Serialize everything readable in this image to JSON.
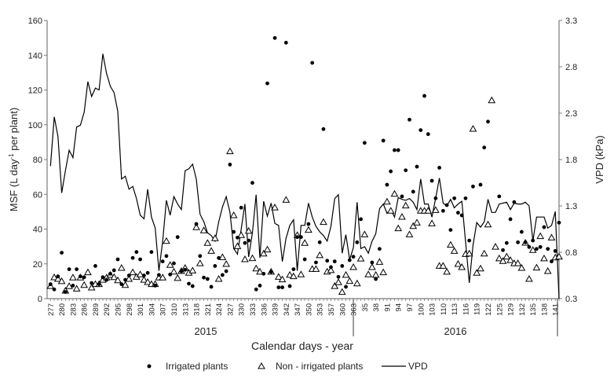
{
  "chart_data": {
    "type": "scatter+line",
    "xlabel": "Calendar days - year",
    "ylabel_left": "MSF (L day-1 per plant)",
    "ylabel_left_parts": {
      "pre": "MSF (L day",
      "sup": "-1",
      "post": " per plant)"
    },
    "ylabel_right": "VPD (kPa)",
    "ylim_left": [
      0,
      160
    ],
    "yticks_left": [
      0,
      20,
      40,
      60,
      80,
      100,
      120,
      140,
      160
    ],
    "ylim_right": [
      0.3,
      3.3
    ],
    "yticks_right": [
      "0.3",
      "0.8",
      "1.3",
      "1.8",
      "2.3",
      "2.8",
      "3.3"
    ],
    "x_tick_labels": [
      "277",
      "280",
      "283",
      "286",
      "289",
      "292",
      "295",
      "298",
      "301",
      "304",
      "307",
      "310",
      "313",
      "318",
      "321",
      "324",
      "327",
      "330",
      "333",
      "336",
      "339",
      "342",
      "347",
      "350",
      "353",
      "357",
      "360",
      "363",
      "35",
      "38",
      "91",
      "94",
      "97",
      "100",
      "103",
      "110",
      "113",
      "116",
      "119",
      "122",
      "125",
      "129",
      "132",
      "135",
      "138",
      "141"
    ],
    "year_labels": [
      "2015",
      "2016"
    ],
    "grid": false,
    "legend_placement": "bottom",
    "legend": [
      "Irrigated plants",
      "Non - irrigated plants",
      "VPD"
    ],
    "colors": {
      "series": "#000000",
      "axis": "#7a7a7a"
    },
    "series": [
      {
        "name": "Irrigated plants",
        "marker": "filled-circle",
        "axis": "left",
        "points": [
          [
            0,
            8.3
          ],
          [
            1,
            5.3
          ],
          [
            2,
            12.8
          ],
          [
            3,
            26.4
          ],
          [
            4,
            3.8
          ],
          [
            5,
            16.9
          ],
          [
            6,
            7.5
          ],
          [
            7,
            16.9
          ],
          [
            8,
            12.8
          ],
          [
            9,
            12.3
          ],
          [
            11,
            9
          ],
          [
            12,
            18.8
          ],
          [
            13,
            8.3
          ],
          [
            14,
            12.3
          ],
          [
            15,
            10.8
          ],
          [
            16,
            14.3
          ],
          [
            17,
            16.3
          ],
          [
            18,
            22.6
          ],
          [
            19,
            8.3
          ],
          [
            20,
            10.8
          ],
          [
            21,
            13.3
          ],
          [
            22,
            23.4
          ],
          [
            23,
            26.8
          ],
          [
            24,
            22.6
          ],
          [
            25,
            13.3
          ],
          [
            26,
            14.8
          ],
          [
            27,
            26.8
          ],
          [
            28,
            7.5
          ],
          [
            29,
            13.6
          ],
          [
            30,
            21.4
          ],
          [
            31,
            24.5
          ],
          [
            32,
            13.9
          ],
          [
            33,
            20.3
          ],
          [
            34,
            35.4
          ],
          [
            35,
            15.8
          ],
          [
            36,
            16.6
          ],
          [
            37,
            8.6
          ],
          [
            38,
            7.2
          ],
          [
            39,
            42.9
          ],
          [
            40,
            24.5
          ],
          [
            41,
            12.1
          ],
          [
            42,
            11.3
          ],
          [
            43,
            6.8
          ],
          [
            44,
            18.8
          ],
          [
            45,
            23.4
          ],
          [
            46,
            13.6
          ],
          [
            47,
            15.8
          ],
          [
            48,
            77.1
          ],
          [
            49,
            38.4
          ],
          [
            50,
            35.1
          ],
          [
            51,
            52.3
          ],
          [
            52,
            32
          ],
          [
            53,
            33.4
          ],
          [
            54,
            66.6
          ],
          [
            55,
            5.3
          ],
          [
            56,
            7.5
          ],
          [
            57,
            14.3
          ],
          [
            58,
            123.8
          ],
          [
            59,
            15.4
          ],
          [
            60,
            149.9
          ],
          [
            61,
            6.5
          ],
          [
            62,
            6.5
          ],
          [
            63,
            147.2
          ],
          [
            64,
            7.2
          ],
          [
            65,
            16.9
          ],
          [
            66,
            35.4
          ],
          [
            67,
            35.4
          ],
          [
            68,
            22.6
          ],
          [
            69,
            42.9
          ],
          [
            70,
            135.6
          ],
          [
            71,
            20.8
          ],
          [
            72,
            32.4
          ],
          [
            73,
            97.5
          ],
          [
            74,
            21.8
          ],
          [
            75,
            18.1
          ],
          [
            76,
            21.4
          ],
          [
            77,
            12.5
          ],
          [
            78,
            18.8
          ],
          [
            79,
            6.8
          ],
          [
            80,
            22.1
          ],
          [
            81,
            24.1
          ],
          [
            82,
            32.4
          ],
          [
            83,
            45.7
          ],
          [
            84,
            89.6
          ],
          [
            86,
            20.8
          ],
          [
            87,
            11.3
          ],
          [
            88,
            28.6
          ],
          [
            89,
            90.9
          ],
          [
            90,
            65.5
          ],
          [
            91,
            73.2
          ],
          [
            92,
            85.4
          ],
          [
            93,
            85.4
          ],
          [
            94,
            58.8
          ],
          [
            95,
            73.8
          ],
          [
            96,
            102.9
          ],
          [
            97,
            61.5
          ],
          [
            98,
            75.9
          ],
          [
            99,
            96.9
          ],
          [
            100,
            116.6
          ],
          [
            101,
            94.6
          ],
          [
            102,
            67.8
          ],
          [
            103,
            57.7
          ],
          [
            104,
            75.3
          ],
          [
            105,
            50.5
          ],
          [
            106,
            53.8
          ],
          [
            107,
            39.5
          ],
          [
            108,
            57.7
          ],
          [
            109,
            49.4
          ],
          [
            110,
            47.9
          ],
          [
            111,
            57.7
          ],
          [
            112,
            33.4
          ],
          [
            113,
            64.5
          ],
          [
            115,
            65.5
          ],
          [
            116,
            86.9
          ],
          [
            117,
            101.8
          ],
          [
            120,
            58.8
          ],
          [
            121,
            27.9
          ],
          [
            122,
            32
          ],
          [
            123,
            45.7
          ],
          [
            124,
            55.5
          ],
          [
            125,
            32.4
          ],
          [
            126,
            38.4
          ],
          [
            127,
            32.4
          ],
          [
            128,
            29.7
          ],
          [
            129,
            33.4
          ],
          [
            130,
            28.6
          ],
          [
            131,
            29.7
          ],
          [
            132,
            41.1
          ],
          [
            133,
            28.6
          ],
          [
            134,
            21.4
          ],
          [
            135,
            27.4
          ],
          [
            136,
            43.7
          ]
        ]
      },
      {
        "name": "Non - irrigated plants",
        "marker": "open-triangle",
        "axis": "left",
        "points": [
          [
            0,
            7.2
          ],
          [
            1,
            12.2
          ],
          [
            2,
            11.3
          ],
          [
            3,
            10
          ],
          [
            4,
            4.5
          ],
          [
            5,
            7.1
          ],
          [
            6,
            12.1
          ],
          [
            7,
            5.7
          ],
          [
            8,
            12.1
          ],
          [
            9,
            7.8
          ],
          [
            10,
            15.1
          ],
          [
            11,
            6.3
          ],
          [
            12,
            8.3
          ],
          [
            13,
            8.3
          ],
          [
            14,
            10.8
          ],
          [
            15,
            12.1
          ],
          [
            16,
            13.6
          ],
          [
            17,
            12.3
          ],
          [
            18,
            10.5
          ],
          [
            19,
            17.6
          ],
          [
            20,
            7.8
          ],
          [
            21,
            11.3
          ],
          [
            22,
            15.1
          ],
          [
            23,
            12.5
          ],
          [
            24,
            13.9
          ],
          [
            25,
            10.8
          ],
          [
            26,
            9.5
          ],
          [
            27,
            8.3
          ],
          [
            28,
            8.3
          ],
          [
            29,
            12.1
          ],
          [
            30,
            12.1
          ],
          [
            31,
            33.1
          ],
          [
            32,
            19.3
          ],
          [
            33,
            15.5
          ],
          [
            34,
            11.8
          ],
          [
            35,
            15.8
          ],
          [
            36,
            17.6
          ],
          [
            37,
            14.8
          ],
          [
            38,
            16.1
          ],
          [
            39,
            41
          ],
          [
            40,
            20.3
          ],
          [
            41,
            39.2
          ],
          [
            42,
            32
          ],
          [
            43,
            27.4
          ],
          [
            44,
            34.7
          ],
          [
            45,
            11.3
          ],
          [
            46,
            23.8
          ],
          [
            47,
            19.9
          ],
          [
            48,
            84.7
          ],
          [
            49,
            47.9
          ],
          [
            50,
            30.1
          ],
          [
            51,
            36.5
          ],
          [
            52,
            22.6
          ],
          [
            53,
            38.9
          ],
          [
            54,
            23.2
          ],
          [
            55,
            17.3
          ],
          [
            56,
            15.4
          ],
          [
            57,
            25.9
          ],
          [
            58,
            28.2
          ],
          [
            59,
            15.4
          ],
          [
            60,
            52.4
          ],
          [
            61,
            12.5
          ],
          [
            62,
            11
          ],
          [
            63,
            56.8
          ],
          [
            64,
            13.6
          ],
          [
            65,
            12.8
          ],
          [
            66,
            36.5
          ],
          [
            67,
            13.9
          ],
          [
            68,
            32
          ],
          [
            69,
            39.5
          ],
          [
            70,
            17
          ],
          [
            71,
            17
          ],
          [
            72,
            24.9
          ],
          [
            73,
            44
          ],
          [
            74,
            15.5
          ],
          [
            75,
            16.3
          ],
          [
            76,
            7.2
          ],
          [
            77,
            9.4
          ],
          [
            78,
            3.8
          ],
          [
            79,
            13.6
          ],
          [
            80,
            10.1
          ],
          [
            81,
            18.1
          ],
          [
            82,
            8.7
          ],
          [
            83,
            23
          ],
          [
            84,
            36.9
          ],
          [
            85,
            13.9
          ],
          [
            86,
            18.1
          ],
          [
            87,
            13.6
          ],
          [
            88,
            21.1
          ],
          [
            89,
            15.1
          ],
          [
            90,
            55.7
          ],
          [
            91,
            50.5
          ],
          [
            92,
            60.2
          ],
          [
            93,
            40.4
          ],
          [
            94,
            47
          ],
          [
            95,
            53.5
          ],
          [
            96,
            36.9
          ],
          [
            97,
            41.7
          ],
          [
            98,
            43.7
          ],
          [
            99,
            50.5
          ],
          [
            100,
            50.5
          ],
          [
            101,
            50.5
          ],
          [
            102,
            43.2
          ],
          [
            103,
            50.9
          ],
          [
            104,
            18.8
          ],
          [
            105,
            18.8
          ],
          [
            106,
            15.4
          ],
          [
            107,
            30.9
          ],
          [
            108,
            27.4
          ],
          [
            109,
            19.9
          ],
          [
            110,
            18.1
          ],
          [
            111,
            25.6
          ],
          [
            112,
            25.9
          ],
          [
            113,
            97.6
          ],
          [
            114,
            14.8
          ],
          [
            115,
            17.3
          ],
          [
            116,
            25.9
          ],
          [
            117,
            42.6
          ],
          [
            118,
            114
          ],
          [
            119,
            29.8
          ],
          [
            120,
            23.1
          ],
          [
            121,
            21.6
          ],
          [
            122,
            24.1
          ],
          [
            123,
            22.1
          ],
          [
            124,
            20.3
          ],
          [
            125,
            20.3
          ],
          [
            126,
            17.6
          ],
          [
            127,
            32.1
          ],
          [
            128,
            11.3
          ],
          [
            129,
            27.9
          ],
          [
            130,
            17.8
          ],
          [
            131,
            35.9
          ],
          [
            132,
            23.1
          ],
          [
            133,
            15.8
          ],
          [
            134,
            35.1
          ],
          [
            135,
            23.6
          ],
          [
            136,
            24.1
          ]
        ]
      },
      {
        "name": "VPD",
        "marker": "line",
        "axis": "right",
        "values": [
          1.73,
          2.26,
          2.05,
          1.44,
          1.68,
          1.9,
          1.82,
          2.15,
          2.17,
          2.31,
          2.64,
          2.48,
          2.57,
          2.55,
          2.94,
          2.73,
          2.59,
          2.52,
          2.32,
          1.59,
          1.62,
          1.48,
          1.51,
          1.38,
          1.2,
          1.16,
          1.48,
          1.18,
          1.06,
          0.6,
          0.92,
          1.36,
          1.2,
          1.4,
          1.32,
          1.26,
          1.68,
          1.7,
          1.75,
          1.59,
          1.21,
          1.13,
          1.01,
          0.98,
          0.92,
          1.13,
          1.29,
          1.4,
          1.23,
          0.84,
          0.78,
          1.05,
          1.32,
          0.75,
          1.01,
          1.42,
          0.74,
          1.35,
          1.19,
          1.33,
          1.11,
          1.09,
          0.7,
          0.95,
          1.09,
          1.15,
          0.6,
          1.09,
          1.09,
          1.33,
          1.18,
          1.08,
          1.02,
          0.98,
          0.92,
          1.08,
          1.38,
          1.42,
          0.79,
          0.99,
          0.72,
          0.85,
          1.34,
          0.84,
          0.86,
          0.79,
          0.92,
          1.0,
          1.27,
          1.32,
          1.22,
          1.26,
          1.18,
          1.39,
          1.37,
          1.36,
          1.38,
          1.34,
          1.26,
          1.59,
          1.32,
          1.32,
          1.18,
          1.38,
          1.6,
          1.33,
          1.3,
          1.37,
          1.28,
          1.32,
          1.35,
          0.92,
          0.47,
          0.88,
          1.12,
          1.07,
          1.13,
          1.37,
          1.23,
          1.23,
          1.32,
          1.33,
          1.34,
          1.26,
          1.33,
          1.32,
          1.32,
          1.34,
          1.3,
          0.92,
          1.18,
          1.18,
          1.18,
          1.06,
          1.09,
          1.24,
          0.3
        ]
      }
    ]
  }
}
